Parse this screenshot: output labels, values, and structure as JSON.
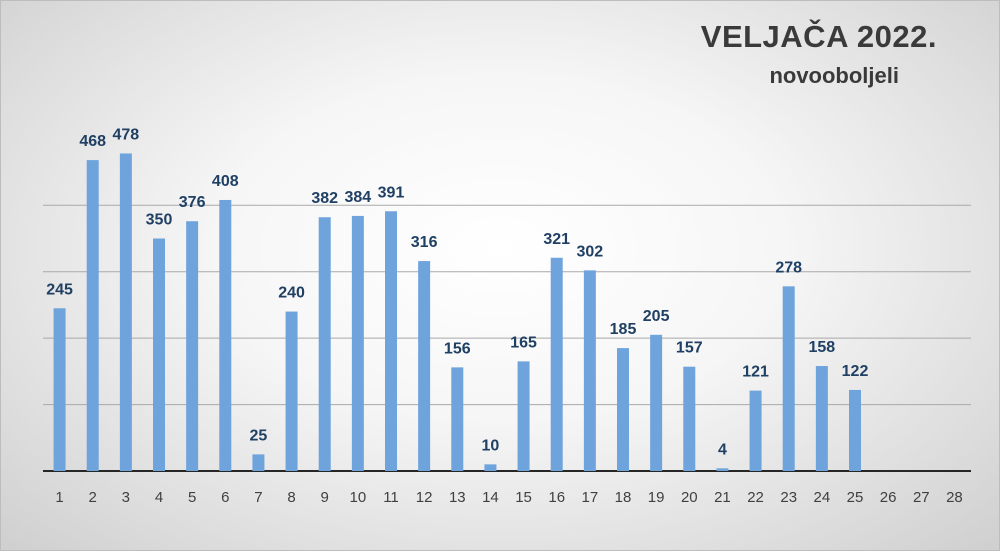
{
  "chart_data": {
    "type": "bar",
    "title": "VELJAČA 2022.",
    "subtitle": "novooboljeli",
    "categories": [
      "1",
      "2",
      "3",
      "4",
      "5",
      "6",
      "7",
      "8",
      "9",
      "10",
      "11",
      "12",
      "13",
      "14",
      "15",
      "16",
      "17",
      "18",
      "19",
      "20",
      "21",
      "22",
      "23",
      "24",
      "25",
      "26",
      "27",
      "28"
    ],
    "values": [
      245,
      468,
      478,
      350,
      376,
      408,
      25,
      240,
      382,
      384,
      391,
      316,
      156,
      10,
      165,
      321,
      302,
      185,
      205,
      157,
      4,
      121,
      278,
      158,
      122,
      null,
      null,
      null
    ],
    "ylim": [
      0,
      700
    ],
    "grid": true,
    "colors": {
      "bar": "#6fa3dc",
      "label": "#1f3f63"
    }
  }
}
